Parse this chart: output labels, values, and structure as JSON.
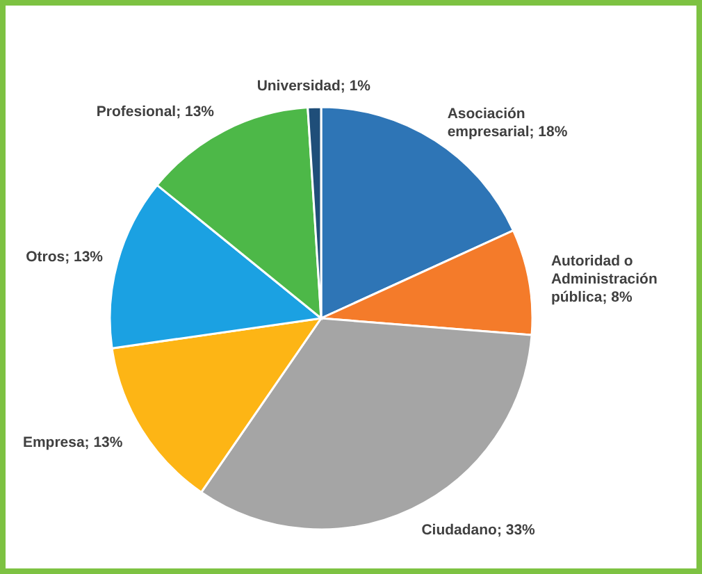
{
  "chart_data": {
    "type": "pie",
    "categories": [
      "Asociación empresarial",
      "Autoridad o Administración pública",
      "Ciudadano",
      "Empresa",
      "Otros",
      "Profesional",
      "Universidad"
    ],
    "values": [
      18,
      8,
      33,
      13,
      13,
      13,
      1
    ],
    "value_labels": [
      "18%",
      "8%",
      "33%",
      "13%",
      "13%",
      "13%",
      "1%"
    ],
    "colors": [
      "#2e75b6",
      "#f47b2a",
      "#a5a5a5",
      "#fdb515",
      "#1ba1e2",
      "#4db848",
      "#1f4e79"
    ]
  }
}
